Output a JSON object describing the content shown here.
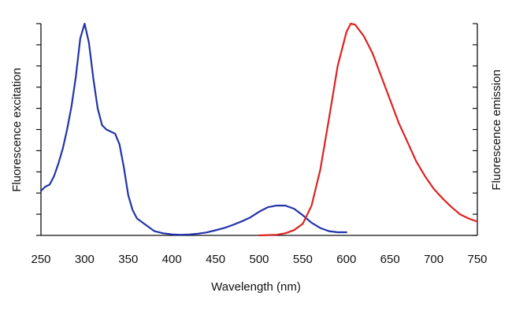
{
  "chart_data": {
    "type": "line",
    "xlabel": "Wavelength (nm)",
    "ylabel_left": "Fluorescence excitation",
    "ylabel_right": "Fluorescence emission",
    "xlim": [
      250,
      750
    ],
    "x_ticks": [
      250,
      300,
      350,
      400,
      450,
      500,
      550,
      600,
      650,
      700,
      750
    ],
    "y_ticks_left": 11,
    "y_ticks_right": 11,
    "grid": false,
    "legend": "none",
    "series": [
      {
        "axis": "left",
        "color": "#2233aa",
        "points": [
          [
            250,
            0.21
          ],
          [
            255,
            0.23
          ],
          [
            260,
            0.24
          ],
          [
            265,
            0.28
          ],
          [
            270,
            0.34
          ],
          [
            275,
            0.41
          ],
          [
            280,
            0.5
          ],
          [
            285,
            0.61
          ],
          [
            290,
            0.75
          ],
          [
            295,
            0.93
          ],
          [
            300,
            1.0
          ],
          [
            305,
            0.91
          ],
          [
            310,
            0.74
          ],
          [
            315,
            0.6
          ],
          [
            320,
            0.52
          ],
          [
            325,
            0.5
          ],
          [
            330,
            0.49
          ],
          [
            335,
            0.48
          ],
          [
            340,
            0.43
          ],
          [
            345,
            0.32
          ],
          [
            350,
            0.19
          ],
          [
            355,
            0.12
          ],
          [
            360,
            0.08
          ],
          [
            370,
            0.05
          ],
          [
            380,
            0.02
          ],
          [
            390,
            0.01
          ],
          [
            400,
            0.005
          ],
          [
            410,
            0.003
          ],
          [
            420,
            0.004
          ],
          [
            430,
            0.008
          ],
          [
            440,
            0.014
          ],
          [
            450,
            0.024
          ],
          [
            460,
            0.035
          ],
          [
            470,
            0.05
          ],
          [
            480,
            0.066
          ],
          [
            490,
            0.085
          ],
          [
            500,
            0.112
          ],
          [
            510,
            0.133
          ],
          [
            520,
            0.141
          ],
          [
            530,
            0.141
          ],
          [
            540,
            0.126
          ],
          [
            550,
            0.095
          ],
          [
            560,
            0.06
          ],
          [
            570,
            0.035
          ],
          [
            580,
            0.02
          ],
          [
            590,
            0.015
          ],
          [
            600,
            0.015
          ]
        ]
      },
      {
        "axis": "right",
        "color": "#dd2222",
        "points": [
          [
            500,
            0.0
          ],
          [
            520,
            0.003
          ],
          [
            530,
            0.01
          ],
          [
            540,
            0.025
          ],
          [
            550,
            0.055
          ],
          [
            560,
            0.14
          ],
          [
            570,
            0.31
          ],
          [
            580,
            0.55
          ],
          [
            590,
            0.8
          ],
          [
            600,
            0.96
          ],
          [
            605,
            1.0
          ],
          [
            610,
            0.995
          ],
          [
            620,
            0.94
          ],
          [
            630,
            0.86
          ],
          [
            640,
            0.75
          ],
          [
            650,
            0.64
          ],
          [
            660,
            0.53
          ],
          [
            670,
            0.44
          ],
          [
            680,
            0.35
          ],
          [
            690,
            0.28
          ],
          [
            700,
            0.22
          ],
          [
            710,
            0.175
          ],
          [
            720,
            0.135
          ],
          [
            730,
            0.1
          ],
          [
            740,
            0.08
          ],
          [
            750,
            0.065
          ]
        ]
      }
    ]
  }
}
